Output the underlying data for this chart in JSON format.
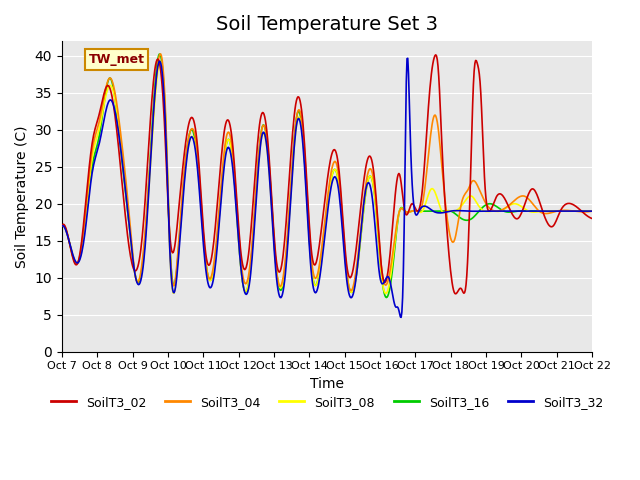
{
  "title": "Soil Temperature Set 3",
  "xlabel": "Time",
  "ylabel": "Soil Temperature (C)",
  "ylim": [
    0,
    42
  ],
  "yticks": [
    0,
    5,
    10,
    15,
    20,
    25,
    30,
    35,
    40
  ],
  "series_colors": {
    "SoilT3_02": "#cc0000",
    "SoilT3_04": "#ff8800",
    "SoilT3_08": "#ffff00",
    "SoilT3_16": "#00cc00",
    "SoilT3_32": "#0000cc"
  },
  "legend_labels": [
    "SoilT3_02",
    "SoilT3_04",
    "SoilT3_08",
    "SoilT3_16",
    "SoilT3_32"
  ],
  "annotation_text": "TW_met",
  "bg_color": "#e8e8e8",
  "title_fontsize": 14,
  "axis_fontsize": 10,
  "tick_labels": [
    "Oct 7",
    "Oct 8",
    "Oct 9",
    "Oct 10",
    "Oct 11",
    "Oct 12",
    "Oct 13",
    "Oct 14",
    "Oct 15",
    "Oct 16",
    "Oct 17",
    "Oct 18",
    "Oct 19",
    "Oct 20",
    "Oct 21",
    "Oct 22"
  ]
}
